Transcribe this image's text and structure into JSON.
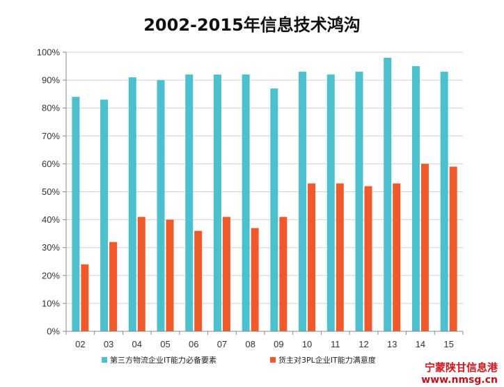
{
  "chart_data": {
    "type": "bar",
    "title": "2002-2015年信息技术鸿沟",
    "categories": [
      "02",
      "03",
      "04",
      "05",
      "06",
      "07",
      "08",
      "09",
      "10",
      "11",
      "12",
      "13",
      "14",
      "15"
    ],
    "series": [
      {
        "name": "第三方物流企业IT能力必备要素",
        "color": "#4bc0cf",
        "values": [
          84,
          83,
          91,
          90,
          92,
          92,
          92,
          87,
          93,
          92,
          93,
          98,
          95,
          93
        ]
      },
      {
        "name": "货主对3PL企业IT能力满意度",
        "color": "#f0592a",
        "values": [
          24,
          32,
          41,
          40,
          36,
          41,
          37,
          41,
          53,
          53,
          52,
          53,
          60,
          59
        ]
      }
    ],
    "yticks": [
      "0%",
      "10%",
      "20%",
      "30%",
      "40%",
      "50%",
      "60%",
      "70%",
      "80%",
      "90%",
      "100%"
    ],
    "ylim": [
      0,
      100
    ],
    "xlabel": "",
    "ylabel": "",
    "grid": true,
    "legend_position": "bottom"
  },
  "watermark": {
    "line1": "宁蒙陕甘信息港",
    "line2": "www.nmsg.cn"
  }
}
